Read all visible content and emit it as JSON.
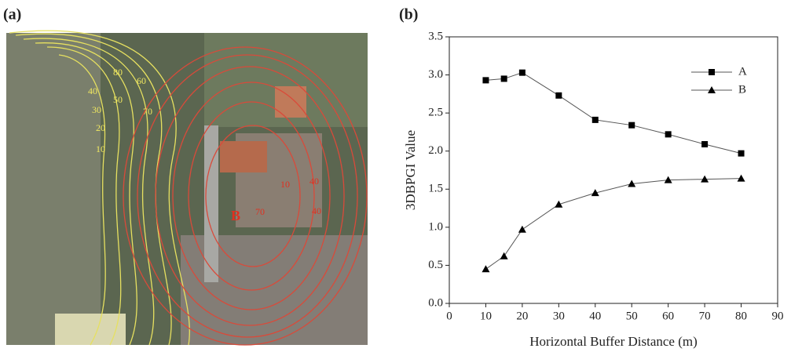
{
  "panel_labels": [
    "(a)",
    "(b)"
  ],
  "map": {
    "labels": [
      "80",
      "60",
      "40",
      "50",
      "70",
      "30",
      "20",
      "10",
      "B",
      "10",
      "40",
      "70",
      "40"
    ]
  },
  "chart_data": {
    "type": "line",
    "x_label": "Horizontal Buffer Distance (m)",
    "y_label": "3DBPGI Value",
    "x": [
      10,
      15,
      20,
      30,
      40,
      50,
      60,
      70,
      80
    ],
    "series": [
      {
        "name": "A",
        "color": "#000000",
        "marker": "square",
        "values": [
          2.93,
          2.95,
          3.03,
          2.73,
          2.41,
          2.34,
          2.22,
          2.09,
          1.97
        ]
      },
      {
        "name": "B",
        "color": "#000000",
        "marker": "triangle",
        "values": [
          0.45,
          0.62,
          0.97,
          1.3,
          1.45,
          1.57,
          1.62,
          1.63,
          1.64
        ]
      }
    ],
    "xlim": [
      0,
      90
    ],
    "xticks": [
      0,
      10,
      20,
      30,
      40,
      50,
      60,
      70,
      80,
      90
    ],
    "ylim": [
      0,
      3.5
    ],
    "yticks": [
      {
        "value": 0,
        "label": "0.0"
      },
      0.5,
      {
        "value": 1,
        "label": "1.0"
      },
      1.5,
      {
        "value": 2,
        "label": "2.0"
      },
      2.5,
      {
        "value": 3,
        "label": "3.0"
      },
      3.5
    ],
    "legend": "upper right"
  }
}
